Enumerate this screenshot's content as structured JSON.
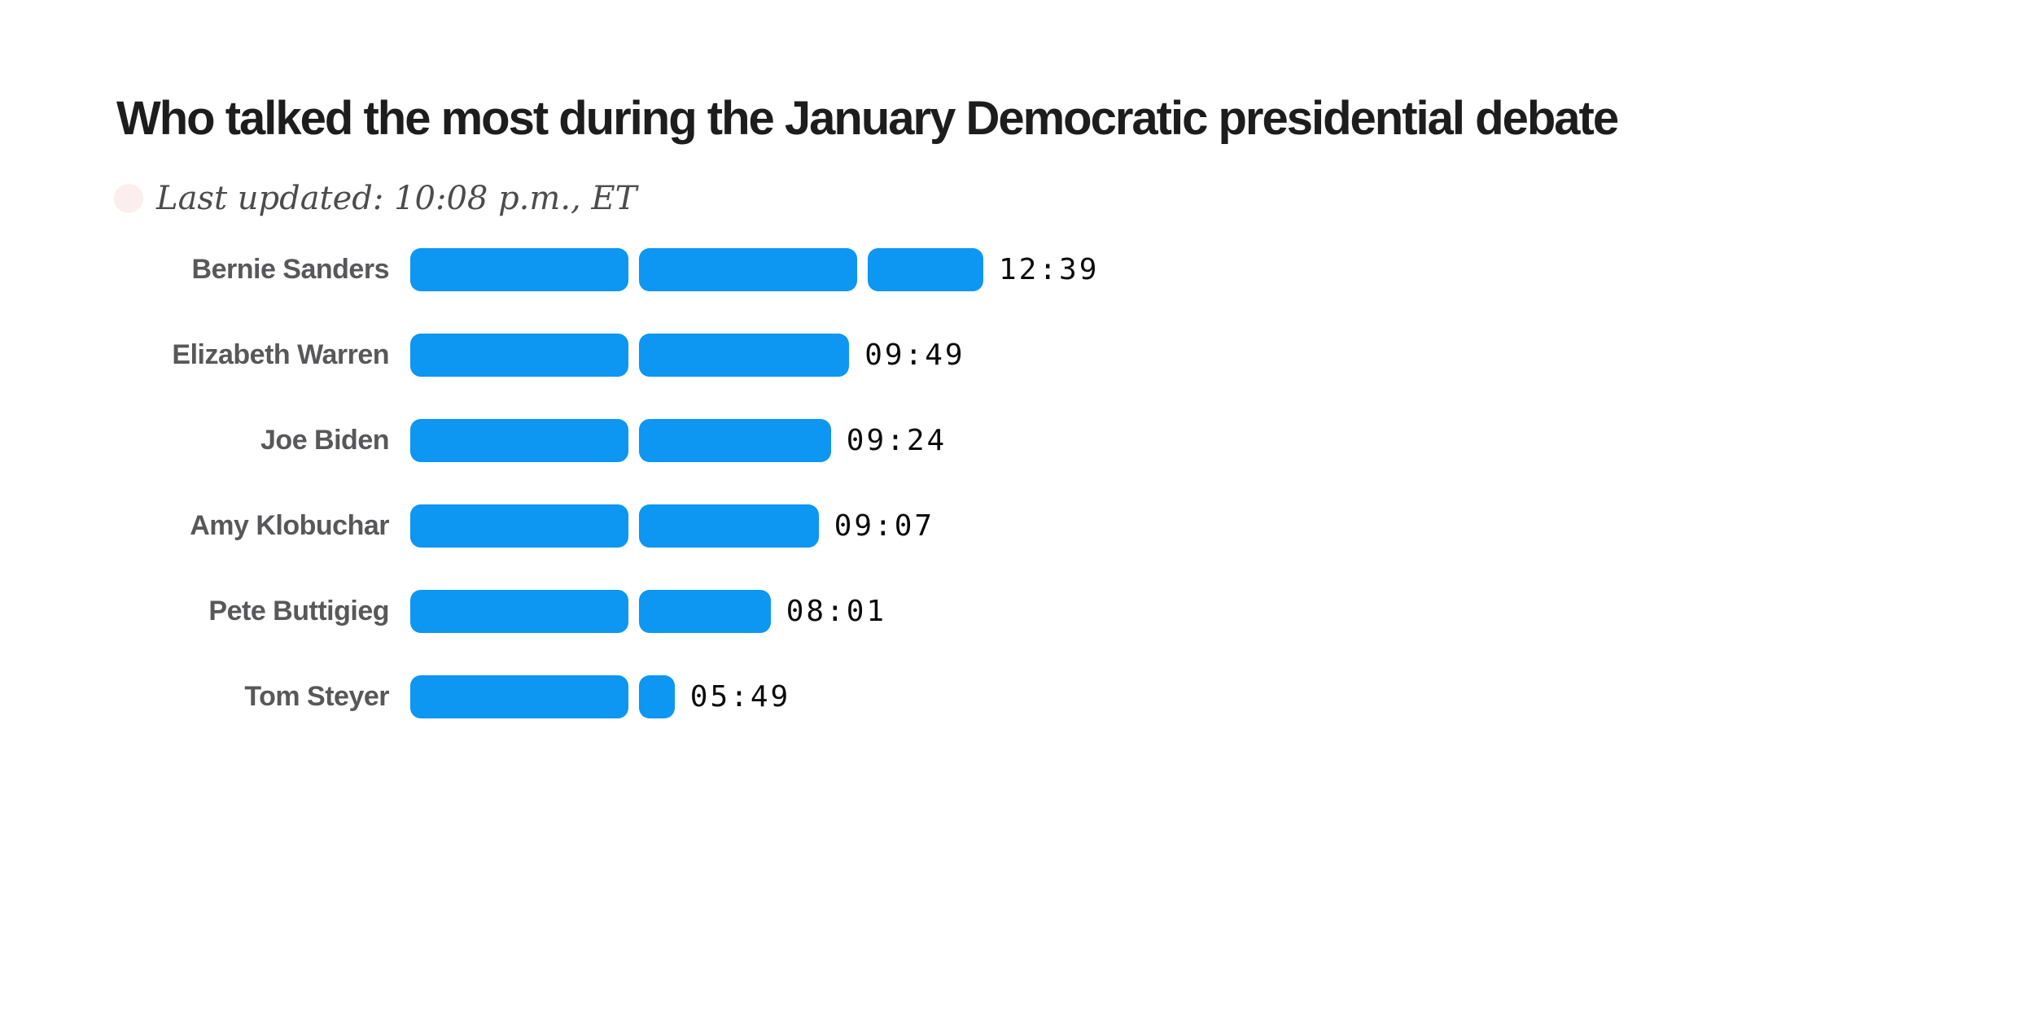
{
  "header": {
    "title": "Who talked the most during the January Democratic presidential debate",
    "subtitle": "Last updated: 10:08 p.m., ET"
  },
  "colors": {
    "bar_blue": "#0d96f2",
    "live_dot_pink": "#fceeee",
    "title_text": "#1d1d1d",
    "label_gray": "#58585a",
    "subtitle_gray": "#4c4c4c",
    "value_black": "#0a0a0a"
  },
  "chart_data": {
    "type": "bar",
    "orientation": "horizontal",
    "title": "Who talked the most during the January Democratic presidential debate",
    "subtitle": "Last updated: 10:08 p.m., ET",
    "unit": "speaking time mm:ss",
    "segment_unit_seconds": 300,
    "segment_unit_label": "5 minutes per bar segment",
    "bar_color": "#0d96f2",
    "grid": false,
    "legend": false,
    "categories": [
      "Bernie Sanders",
      "Elizabeth Warren",
      "Joe Biden",
      "Amy Klobuchar",
      "Pete Buttigieg",
      "Tom Steyer"
    ],
    "values": [
      "12:39",
      "09:49",
      "09:24",
      "09:07",
      "08:01",
      "05:49"
    ],
    "values_seconds": [
      759,
      589,
      564,
      547,
      481,
      349
    ],
    "rows": [
      {
        "label": "Bernie Sanders",
        "value": "12:39",
        "seconds": 759
      },
      {
        "label": "Elizabeth Warren",
        "value": "09:49",
        "seconds": 589
      },
      {
        "label": "Joe Biden",
        "value": "09:24",
        "seconds": 564
      },
      {
        "label": "Amy Klobuchar",
        "value": "09:07",
        "seconds": 547
      },
      {
        "label": "Pete Buttigieg",
        "value": "08:01",
        "seconds": 481
      },
      {
        "label": "Tom Steyer",
        "value": "05:49",
        "seconds": 349
      }
    ]
  }
}
